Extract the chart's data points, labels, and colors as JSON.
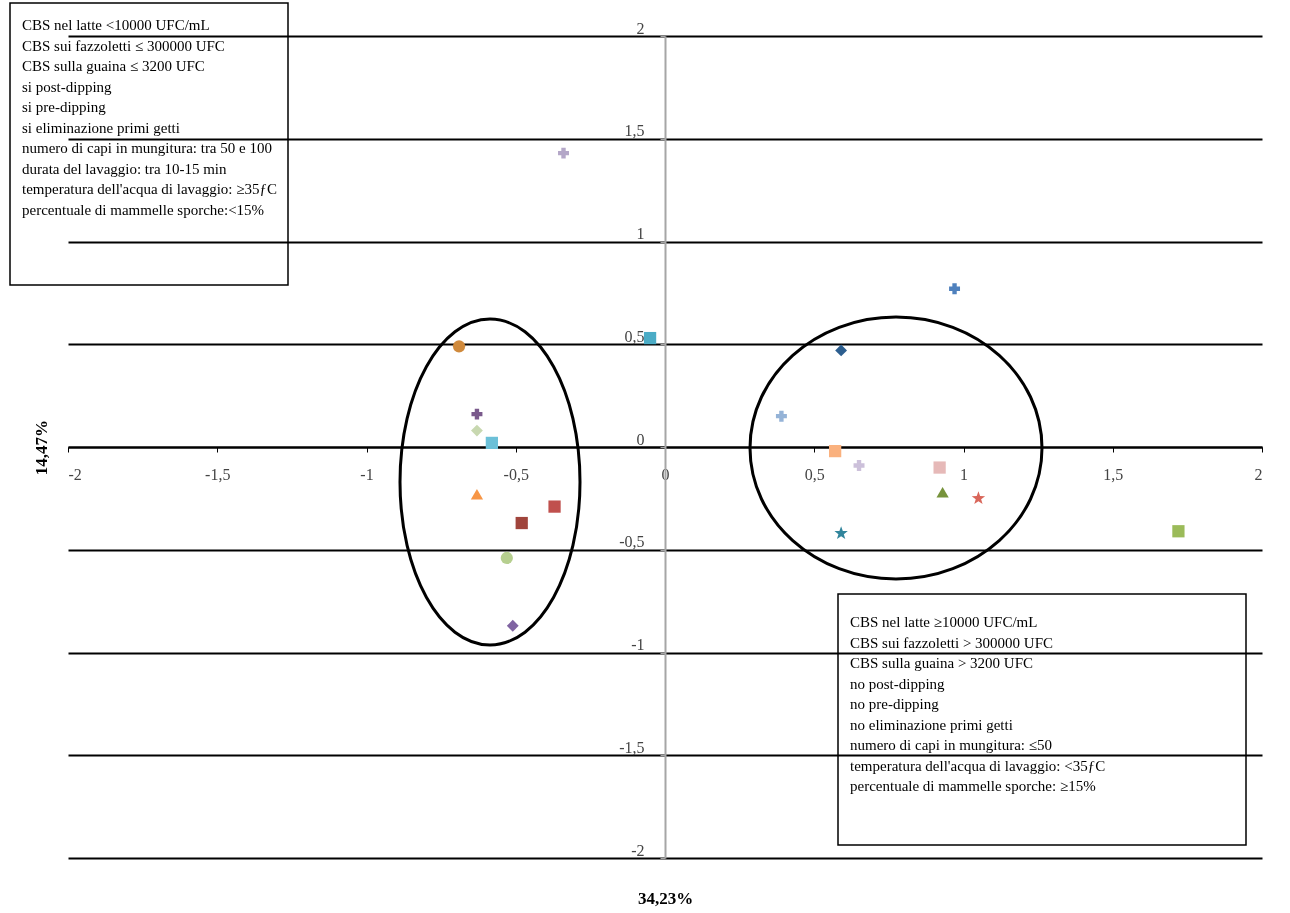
{
  "chart_data": {
    "type": "scatter",
    "xlabel": "34,23%",
    "ylabel": "14,47%",
    "xlim": [
      -2,
      2
    ],
    "ylim": [
      -2,
      2
    ],
    "xticks": [
      {
        "value": -2,
        "label": "-2"
      },
      {
        "value": -1.5,
        "label": "-1,5"
      },
      {
        "value": -1,
        "label": "-1"
      },
      {
        "value": -0.5,
        "label": "-0,5"
      },
      {
        "value": 0,
        "label": "0"
      },
      {
        "value": 0.5,
        "label": "0,5"
      },
      {
        "value": 1,
        "label": "1"
      },
      {
        "value": 1.5,
        "label": "1,5"
      },
      {
        "value": 2,
        "label": "2"
      }
    ],
    "yticks": [
      {
        "value": -2,
        "label": "-2"
      },
      {
        "value": -1.5,
        "label": "-1,5"
      },
      {
        "value": -1,
        "label": "-1"
      },
      {
        "value": -0.5,
        "label": "-0,5"
      },
      {
        "value": 0,
        "label": "0"
      },
      {
        "value": 0.5,
        "label": "0,5"
      },
      {
        "value": 1,
        "label": "1"
      },
      {
        "value": 1.5,
        "label": "1,5"
      },
      {
        "value": 2,
        "label": "2"
      }
    ],
    "grid": "y",
    "legend": false,
    "series": [
      {
        "color": "#b4a7c8",
        "marker": "cross",
        "x": [
          -0.34
        ],
        "values": [
          1.43
        ]
      },
      {
        "color": "#4bacc6",
        "marker": "square",
        "x": [
          -0.05
        ],
        "values": [
          0.53
        ]
      },
      {
        "color": "#d08a3c",
        "marker": "circle",
        "x": [
          -0.69
        ],
        "values": [
          0.49
        ]
      },
      {
        "color": "#7a5a8c",
        "marker": "cross",
        "x": [
          -0.63
        ],
        "values": [
          0.16
        ]
      },
      {
        "color": "#c8d8b0",
        "marker": "diamond",
        "x": [
          -0.63
        ],
        "values": [
          0.08
        ]
      },
      {
        "color": "#6cc0d8",
        "marker": "square",
        "x": [
          -0.58
        ],
        "values": [
          0.02
        ]
      },
      {
        "color": "#f79646",
        "marker": "triangle",
        "x": [
          -0.63
        ],
        "values": [
          -0.23
        ]
      },
      {
        "color": "#c0504d",
        "marker": "square",
        "x": [
          -0.37
        ],
        "values": [
          -0.29
        ]
      },
      {
        "color": "#a0443c",
        "marker": "square",
        "x": [
          -0.48
        ],
        "values": [
          -0.37
        ]
      },
      {
        "color": "#b6cf8f",
        "marker": "circle",
        "x": [
          -0.53
        ],
        "values": [
          -0.54
        ]
      },
      {
        "color": "#8064a2",
        "marker": "diamond",
        "x": [
          -0.51
        ],
        "values": [
          -0.87
        ]
      },
      {
        "color": "#4f81bd",
        "marker": "cross",
        "x": [
          0.97
        ],
        "values": [
          0.77
        ]
      },
      {
        "color": "#2c5e8f",
        "marker": "diamond",
        "x": [
          0.59
        ],
        "values": [
          0.47
        ]
      },
      {
        "color": "#95b3d7",
        "marker": "cross",
        "x": [
          0.39
        ],
        "values": [
          0.15
        ]
      },
      {
        "color": "#fab17e",
        "marker": "square",
        "x": [
          0.57
        ],
        "values": [
          -0.02
        ]
      },
      {
        "color": "#ccc0da",
        "marker": "cross",
        "x": [
          0.65
        ],
        "values": [
          -0.09
        ]
      },
      {
        "color": "#e6b9b8",
        "marker": "square",
        "x": [
          0.92
        ],
        "values": [
          -0.1
        ]
      },
      {
        "color": "#77933c",
        "marker": "triangle",
        "x": [
          0.93
        ],
        "values": [
          -0.22
        ]
      },
      {
        "color": "#d9665a",
        "marker": "star",
        "x": [
          1.05
        ],
        "values": [
          -0.25
        ]
      },
      {
        "color": "#31859c",
        "marker": "star",
        "x": [
          0.59
        ],
        "values": [
          -0.42
        ]
      },
      {
        "color": "#9bbb59",
        "marker": "square",
        "x": [
          1.72
        ],
        "values": [
          -0.41
        ]
      }
    ],
    "annotations": [
      "CBS nel latte <10000 UFC/mL\nCBS sui fazzoletti ≤ 300000 UFC\nCBS sulla guaina  ≤ 3200 UFC\nsi post-dipping\nsi pre-dipping\nsi eliminazione primi getti\nnumero di capi in mungitura: tra 50 e 100\ndurata del lavaggio: tra 10-15 min\ntemperatura dell'acqua di lavaggio: ≥35ƒC\npercentuale di mammelle sporche:<15%",
      "CBS nel latte ≥10000 UFC/mL\nCBS sui fazzoletti > 300000 UFC\nCBS sulla guaina  > 3200 UFC\nno post-dipping\nno pre-dipping\nno eliminazione primi getti\nnumero di capi in mungitura: ≤50\ntemperatura dell'acqua di lavaggio: <35ƒC\npercentuale di mammelle sporche: ≥15%"
    ]
  }
}
